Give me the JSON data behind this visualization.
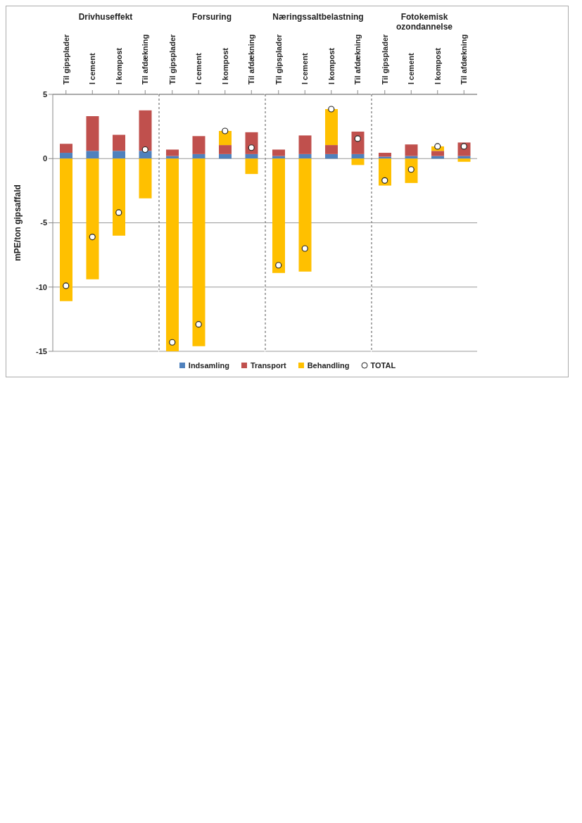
{
  "chart_data": [
    {
      "type": "bar",
      "title": "Drivhuseffekt",
      "ylabel": "mPE/ton gipsaffald",
      "categories": [
        "Til gipsplader",
        "I cement",
        "I kompost",
        "Til afdækning"
      ],
      "stacked": true,
      "ylim": [
        -15,
        5
      ],
      "yticks": [
        -15,
        -10,
        -5,
        0,
        5
      ],
      "grid": "y",
      "legend": "bottom",
      "marker": "circle",
      "series": [
        {
          "name": "Indsamling",
          "color": "#4f81bd",
          "values": [
            0.45,
            0.6,
            0.6,
            0.6
          ]
        },
        {
          "name": "Transport",
          "color": "#c0504d",
          "values": [
            0.7,
            2.7,
            1.25,
            3.15
          ]
        },
        {
          "name": "Behandling",
          "color": "#ffc000",
          "values": [
            -11.1,
            -9.4,
            -6.0,
            -3.1
          ]
        },
        {
          "name": "TOTAL",
          "type": "scatter",
          "color": "#ffffff",
          "values": [
            -9.9,
            -6.1,
            -4.2,
            0.7
          ]
        }
      ]
    },
    {
      "type": "bar",
      "title": "Forsuring",
      "categories": [
        "Til gipsplader",
        "I cement",
        "I kompost",
        "Til afdækning"
      ],
      "stacked": true,
      "ylim": [
        -15,
        5
      ],
      "yticks": [
        -15,
        -10,
        -5,
        0,
        5
      ],
      "grid": "y",
      "tick_labels": "x",
      "marker": "circle",
      "series": [
        {
          "color": "#4f81bd",
          "values": [
            0.2,
            0.35,
            0.35,
            0.35
          ]
        },
        {
          "color": "#c0504d",
          "values": [
            0.5,
            1.4,
            0.7,
            1.7
          ]
        },
        {
          "color": "#ffc000",
          "values": [
            -15,
            -14.6,
            1.1,
            -1.2
          ]
        },
        {
          "type": "scatter",
          "color": "#ffffff",
          "values": [
            -14.3,
            -12.9,
            2.15,
            0.85
          ]
        }
      ]
    },
    {
      "type": "bar",
      "title": "Næringssaltbelastning",
      "categories": [
        "Til gipsplader",
        "I cement",
        "I kompost",
        "Til afdækning"
      ],
      "stacked": true,
      "ylim": [
        -15,
        5
      ],
      "yticks": [
        -15,
        -10,
        -5,
        0,
        5
      ],
      "grid": "y",
      "tick_labels": "x",
      "marker": "circle",
      "series": [
        {
          "color": "#4f81bd",
          "values": [
            0.2,
            0.35,
            0.35,
            0.35
          ]
        },
        {
          "color": "#c0504d",
          "values": [
            0.5,
            1.45,
            0.7,
            1.75
          ]
        },
        {
          "color": "#ffc000",
          "values": [
            -8.9,
            -8.8,
            2.8,
            -0.5
          ]
        },
        {
          "type": "scatter",
          "color": "#ffffff",
          "values": [
            -8.3,
            -7.0,
            3.85,
            1.55
          ]
        }
      ]
    },
    {
      "type": "bar",
      "title": "Fotokemisk ozondannelse",
      "categories": [
        "Til gipsplader",
        "I cement",
        "I kompost",
        "Til afdækning"
      ],
      "stacked": true,
      "ylim": [
        -15,
        5
      ],
      "yticks": [
        -15,
        -10,
        -5,
        0,
        5
      ],
      "grid": "y",
      "tick_labels": "x",
      "marker": "circle",
      "series": [
        {
          "color": "#4f81bd",
          "values": [
            0.15,
            0.2,
            0.2,
            0.2
          ]
        },
        {
          "color": "#c0504d",
          "values": [
            0.3,
            0.9,
            0.4,
            1.05
          ]
        },
        {
          "color": "#ffc000",
          "values": [
            -2.1,
            -1.9,
            0.35,
            -0.25
          ]
        },
        {
          "type": "scatter",
          "color": "#ffffff",
          "values": [
            -1.7,
            -0.85,
            0.95,
            0.95
          ]
        }
      ]
    }
  ]
}
